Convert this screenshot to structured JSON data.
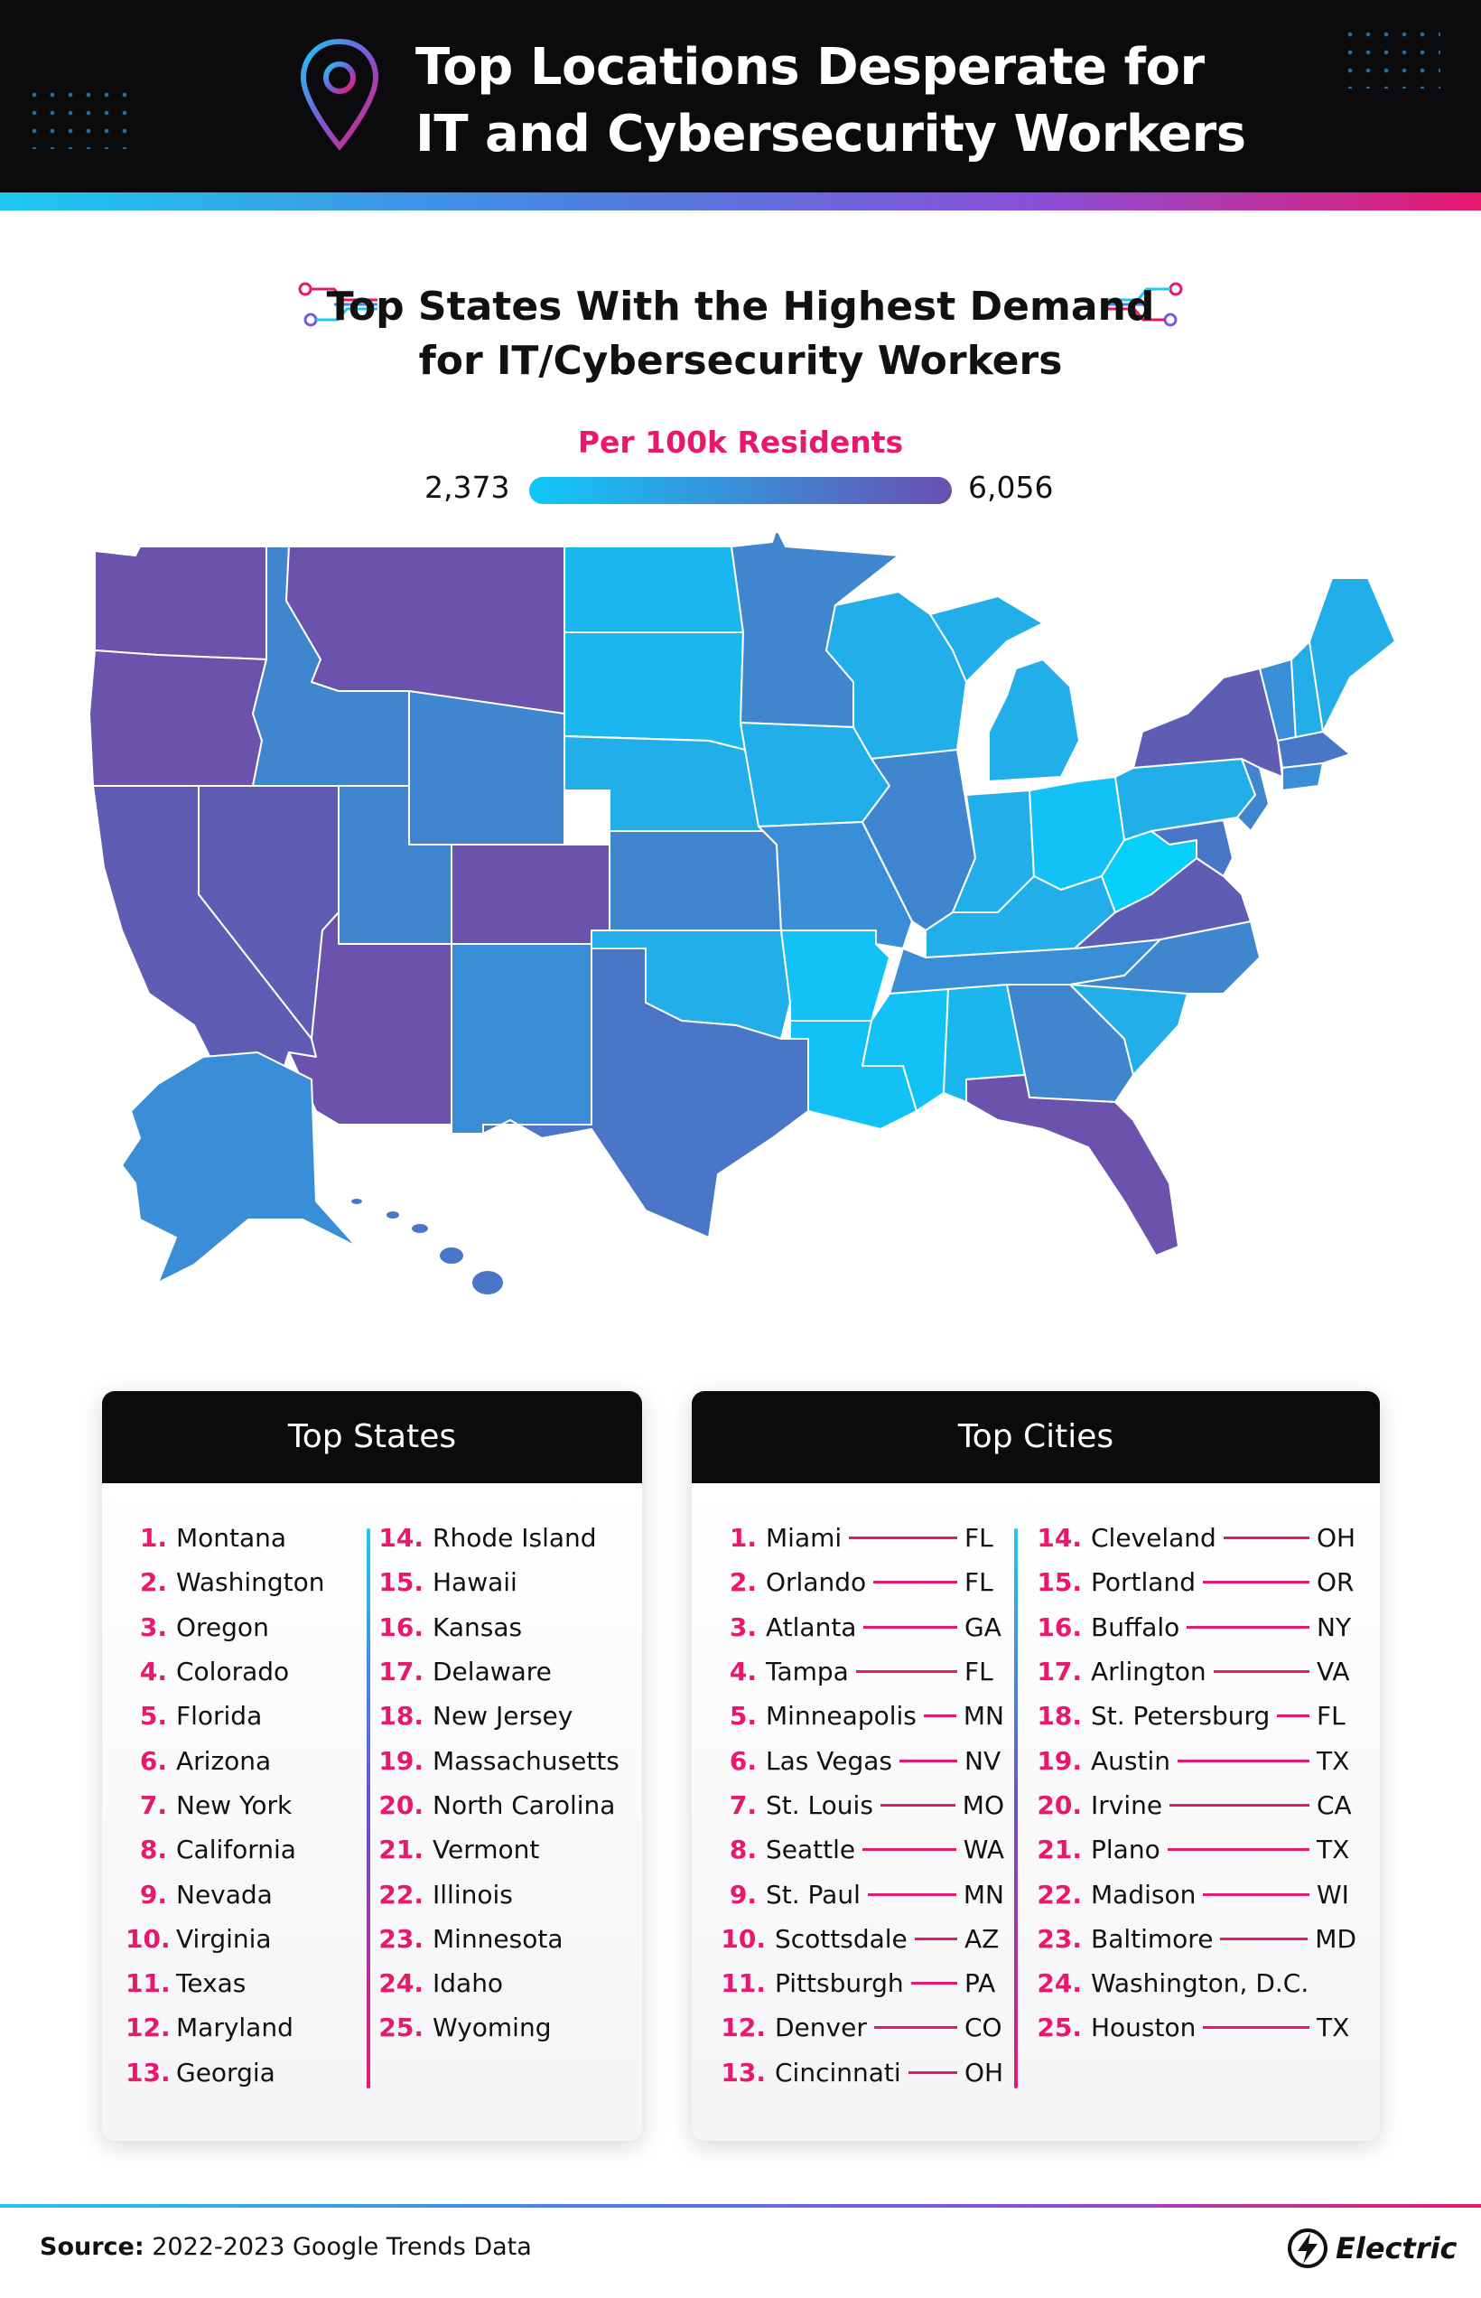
{
  "header": {
    "title_line1": "Top Locations Desperate for",
    "title_line2": "IT and Cybersecurity Workers",
    "icon": "location-pin-icon"
  },
  "subtitle": {
    "line1": "Top States With the Highest Demand",
    "line2": "for IT/Cybersecurity Workers"
  },
  "legend": {
    "title": "Per 100k Residents",
    "min": "2,373",
    "max": "6,056",
    "color_low": "#10c8f8",
    "color_mid": "#3a8ed8",
    "color_high": "#6a4fb0"
  },
  "map": {
    "type": "choropleth",
    "region": "United States",
    "shading": "state-level demand per 100k residents"
  },
  "top_states": {
    "heading": "Top States",
    "items": [
      {
        "rank": "1.",
        "name": "Montana"
      },
      {
        "rank": "2.",
        "name": "Washington"
      },
      {
        "rank": "3.",
        "name": "Oregon"
      },
      {
        "rank": "4.",
        "name": "Colorado"
      },
      {
        "rank": "5.",
        "name": "Florida"
      },
      {
        "rank": "6.",
        "name": "Arizona"
      },
      {
        "rank": "7.",
        "name": "New York"
      },
      {
        "rank": "8.",
        "name": "California"
      },
      {
        "rank": "9.",
        "name": "Nevada"
      },
      {
        "rank": "10.",
        "name": "Virginia"
      },
      {
        "rank": "11.",
        "name": "Texas"
      },
      {
        "rank": "12.",
        "name": "Maryland"
      },
      {
        "rank": "13.",
        "name": "Georgia"
      },
      {
        "rank": "14.",
        "name": "Rhode Island"
      },
      {
        "rank": "15.",
        "name": "Hawaii"
      },
      {
        "rank": "16.",
        "name": "Kansas"
      },
      {
        "rank": "17.",
        "name": "Delaware"
      },
      {
        "rank": "18.",
        "name": "New Jersey"
      },
      {
        "rank": "19.",
        "name": "Massachusetts"
      },
      {
        "rank": "20.",
        "name": "North Carolina"
      },
      {
        "rank": "21.",
        "name": "Vermont"
      },
      {
        "rank": "22.",
        "name": "Illinois"
      },
      {
        "rank": "23.",
        "name": "Minnesota"
      },
      {
        "rank": "24.",
        "name": "Idaho"
      },
      {
        "rank": "25.",
        "name": "Wyoming"
      }
    ]
  },
  "top_cities": {
    "heading": "Top Cities",
    "items": [
      {
        "rank": "1.",
        "city": "Miami",
        "state": "FL"
      },
      {
        "rank": "2.",
        "city": "Orlando",
        "state": "FL"
      },
      {
        "rank": "3.",
        "city": "Atlanta",
        "state": "GA"
      },
      {
        "rank": "4.",
        "city": "Tampa",
        "state": "FL"
      },
      {
        "rank": "5.",
        "city": "Minneapolis",
        "state": "MN"
      },
      {
        "rank": "6.",
        "city": "Las Vegas",
        "state": "NV"
      },
      {
        "rank": "7.",
        "city": "St. Louis",
        "state": "MO"
      },
      {
        "rank": "8.",
        "city": "Seattle",
        "state": "WA"
      },
      {
        "rank": "9.",
        "city": "St. Paul",
        "state": "MN"
      },
      {
        "rank": "10.",
        "city": "Scottsdale",
        "state": "AZ"
      },
      {
        "rank": "11.",
        "city": "Pittsburgh",
        "state": "PA"
      },
      {
        "rank": "12.",
        "city": "Denver",
        "state": "CO"
      },
      {
        "rank": "13.",
        "city": "Cincinnati",
        "state": "OH"
      },
      {
        "rank": "14.",
        "city": "Cleveland",
        "state": "OH"
      },
      {
        "rank": "15.",
        "city": "Portland",
        "state": "OR"
      },
      {
        "rank": "16.",
        "city": "Buffalo",
        "state": "NY"
      },
      {
        "rank": "17.",
        "city": "Arlington",
        "state": "VA"
      },
      {
        "rank": "18.",
        "city": "St. Petersburg",
        "state": "FL"
      },
      {
        "rank": "19.",
        "city": "Austin",
        "state": "TX"
      },
      {
        "rank": "20.",
        "city": "Irvine",
        "state": "CA"
      },
      {
        "rank": "21.",
        "city": "Plano",
        "state": "TX"
      },
      {
        "rank": "22.",
        "city": "Madison",
        "state": "WI"
      },
      {
        "rank": "23.",
        "city": "Baltimore",
        "state": "MD"
      },
      {
        "rank": "24.",
        "city": "Washington, D.C.",
        "state": ""
      },
      {
        "rank": "25.",
        "city": "Houston",
        "state": "TX"
      }
    ]
  },
  "footer": {
    "source_label": "Source:",
    "source_text": "2022-2023 Google Trends Data",
    "brand": "Electric",
    "brand_icon": "lightning-bolt-icon"
  }
}
